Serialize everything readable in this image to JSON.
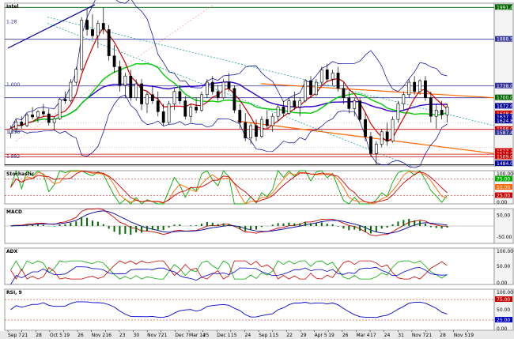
{
  "chart_data": {
    "type": "candlestick",
    "title": "Intel",
    "price_panel": {
      "ylim": [
        1480,
        2005
      ],
      "right_axis_labels": [
        "1991.44",
        "1888.56",
        "1738.00",
        "1700.00",
        "1672.65",
        "1648.65",
        "1637.74",
        "1624.80",
        "1598.00",
        "1587.45",
        "1527.18",
        "1518.00",
        "1509.00",
        "1484.00"
      ],
      "left_labels": [
        "1.28",
        "1.000",
        "1.618",
        "1.882"
      ],
      "horizontal_levels": [
        {
          "value": 1991.44,
          "color": "#006600"
        },
        {
          "value": 1888.56,
          "color": "#333399"
        },
        {
          "value": 1738.0,
          "color": "#333399"
        },
        {
          "value": 1700.0,
          "color": "#333399"
        },
        {
          "value": 1598.0,
          "color": "#cc0000"
        },
        {
          "value": 1518.0,
          "color": "#cc0000"
        },
        {
          "value": 1509.0,
          "color": "#cc0000"
        },
        {
          "value": 1484.0,
          "color": "#000000"
        }
      ],
      "candles": [
        [
          1585,
          1610,
          1570,
          1600
        ],
        [
          1600,
          1630,
          1590,
          1622
        ],
        [
          1622,
          1640,
          1600,
          1610
        ],
        [
          1610,
          1650,
          1605,
          1645
        ],
        [
          1645,
          1670,
          1630,
          1638
        ],
        [
          1638,
          1660,
          1620,
          1655
        ],
        [
          1655,
          1680,
          1640,
          1648
        ],
        [
          1648,
          1665,
          1610,
          1620
        ],
        [
          1620,
          1640,
          1595,
          1632
        ],
        [
          1632,
          1700,
          1628,
          1695
        ],
        [
          1695,
          1720,
          1680,
          1690
        ],
        [
          1690,
          1760,
          1685,
          1750
        ],
        [
          1750,
          1800,
          1740,
          1792
        ],
        [
          1792,
          1960,
          1785,
          1950
        ],
        [
          1950,
          1985,
          1900,
          1920
        ],
        [
          1920,
          1970,
          1890,
          1900
        ],
        [
          1900,
          1950,
          1860,
          1940
        ],
        [
          1940,
          1990,
          1905,
          1920
        ],
        [
          1920,
          1935,
          1820,
          1835
        ],
        [
          1835,
          1870,
          1780,
          1800
        ],
        [
          1800,
          1820,
          1720,
          1740
        ],
        [
          1740,
          1780,
          1700,
          1770
        ],
        [
          1770,
          1790,
          1690,
          1700
        ],
        [
          1700,
          1760,
          1690,
          1745
        ],
        [
          1745,
          1760,
          1660,
          1680
        ],
        [
          1680,
          1720,
          1650,
          1710
        ],
        [
          1710,
          1740,
          1680,
          1690
        ],
        [
          1690,
          1720,
          1640,
          1655
        ],
        [
          1655,
          1680,
          1610,
          1620
        ],
        [
          1620,
          1690,
          1615,
          1680
        ],
        [
          1680,
          1730,
          1660,
          1720
        ],
        [
          1720,
          1740,
          1680,
          1690
        ],
        [
          1690,
          1705,
          1630,
          1640
        ],
        [
          1640,
          1680,
          1620,
          1670
        ],
        [
          1670,
          1700,
          1650,
          1660
        ],
        [
          1660,
          1720,
          1655,
          1710
        ],
        [
          1710,
          1760,
          1700,
          1750
        ],
        [
          1750,
          1770,
          1710,
          1720
        ],
        [
          1720,
          1740,
          1690,
          1700
        ],
        [
          1700,
          1760,
          1695,
          1750
        ],
        [
          1750,
          1780,
          1720,
          1730
        ],
        [
          1730,
          1740,
          1650,
          1660
        ],
        [
          1660,
          1680,
          1600,
          1620
        ],
        [
          1620,
          1650,
          1560,
          1570
        ],
        [
          1570,
          1620,
          1550,
          1610
        ],
        [
          1610,
          1630,
          1560,
          1575
        ],
        [
          1575,
          1640,
          1570,
          1630
        ],
        [
          1630,
          1660,
          1600,
          1610
        ],
        [
          1610,
          1650,
          1590,
          1640
        ],
        [
          1640,
          1680,
          1625,
          1670
        ],
        [
          1670,
          1690,
          1640,
          1650
        ],
        [
          1650,
          1700,
          1645,
          1690
        ],
        [
          1690,
          1720,
          1660,
          1670
        ],
        [
          1670,
          1700,
          1640,
          1690
        ],
        [
          1690,
          1760,
          1685,
          1755
        ],
        [
          1755,
          1770,
          1700,
          1710
        ],
        [
          1710,
          1760,
          1705,
          1750
        ],
        [
          1750,
          1800,
          1740,
          1790
        ],
        [
          1790,
          1810,
          1750,
          1760
        ],
        [
          1760,
          1790,
          1740,
          1780
        ],
        [
          1780,
          1800,
          1720,
          1730
        ],
        [
          1730,
          1750,
          1680,
          1700
        ],
        [
          1700,
          1720,
          1650,
          1665
        ],
        [
          1665,
          1700,
          1640,
          1690
        ],
        [
          1690,
          1700,
          1620,
          1630
        ],
        [
          1630,
          1650,
          1560,
          1575
        ],
        [
          1575,
          1590,
          1510,
          1520
        ],
        [
          1520,
          1560,
          1485,
          1550
        ],
        [
          1550,
          1600,
          1540,
          1590
        ],
        [
          1590,
          1620,
          1545,
          1560
        ],
        [
          1560,
          1640,
          1555,
          1630
        ],
        [
          1630,
          1690,
          1620,
          1680
        ],
        [
          1680,
          1720,
          1660,
          1710
        ],
        [
          1710,
          1760,
          1700,
          1750
        ],
        [
          1750,
          1770,
          1710,
          1720
        ],
        [
          1720,
          1760,
          1710,
          1755
        ],
        [
          1755,
          1770,
          1690,
          1700
        ],
        [
          1700,
          1720,
          1620,
          1640
        ],
        [
          1640,
          1680,
          1600,
          1660
        ],
        [
          1660,
          1690,
          1630,
          1645
        ],
        [
          1645,
          1680,
          1620,
          1670
        ]
      ],
      "series": [
        {
          "name": "",
          "color": "#cc0000"
        },
        {
          "name": "",
          "color": "#00cc00"
        },
        {
          "name": "",
          "color": "#3300cc"
        },
        {
          "name": "",
          "color": "#000099"
        }
      ],
      "trendlines_colors": [
        "#ff6600",
        "#009999",
        "#ff9999"
      ]
    },
    "x_tick_labels": [
      "Sep 7",
      "21",
      "28",
      "Oct 5",
      "19",
      "26",
      "Nov 2",
      "16",
      "23",
      "30",
      "Nov 7",
      "21",
      "Dec 7",
      "Mar 14",
      "25",
      "Dec 1",
      "15",
      "24",
      "Sep 1",
      "15",
      "22",
      "29",
      "Apr 5",
      "19",
      "26",
      "Mar 4",
      "17",
      "24",
      "31",
      "Nov 7",
      "21",
      "28",
      "Nov 5",
      "19"
    ],
    "stochastic": {
      "title": "Stochastic",
      "right_axis_labels": [
        "100.00",
        "75.00",
        "50.00",
        "25.00",
        "0.00"
      ],
      "ylim": [
        0,
        100
      ]
    },
    "macd": {
      "title": "MACD",
      "right_axis_labels": [
        "50.00",
        "-50.00"
      ],
      "ylim": [
        -80,
        80
      ]
    },
    "adx": {
      "title": "ADX",
      "right_axis_labels": [
        "100.00",
        "50.00",
        "0.00"
      ],
      "ylim": [
        0,
        100
      ]
    },
    "rsi": {
      "title": "RSI, 9",
      "right_axis_labels": [
        "100.00",
        "75.00",
        "50.00",
        "25.00",
        "0.00"
      ],
      "ylim": [
        0,
        100
      ]
    }
  }
}
